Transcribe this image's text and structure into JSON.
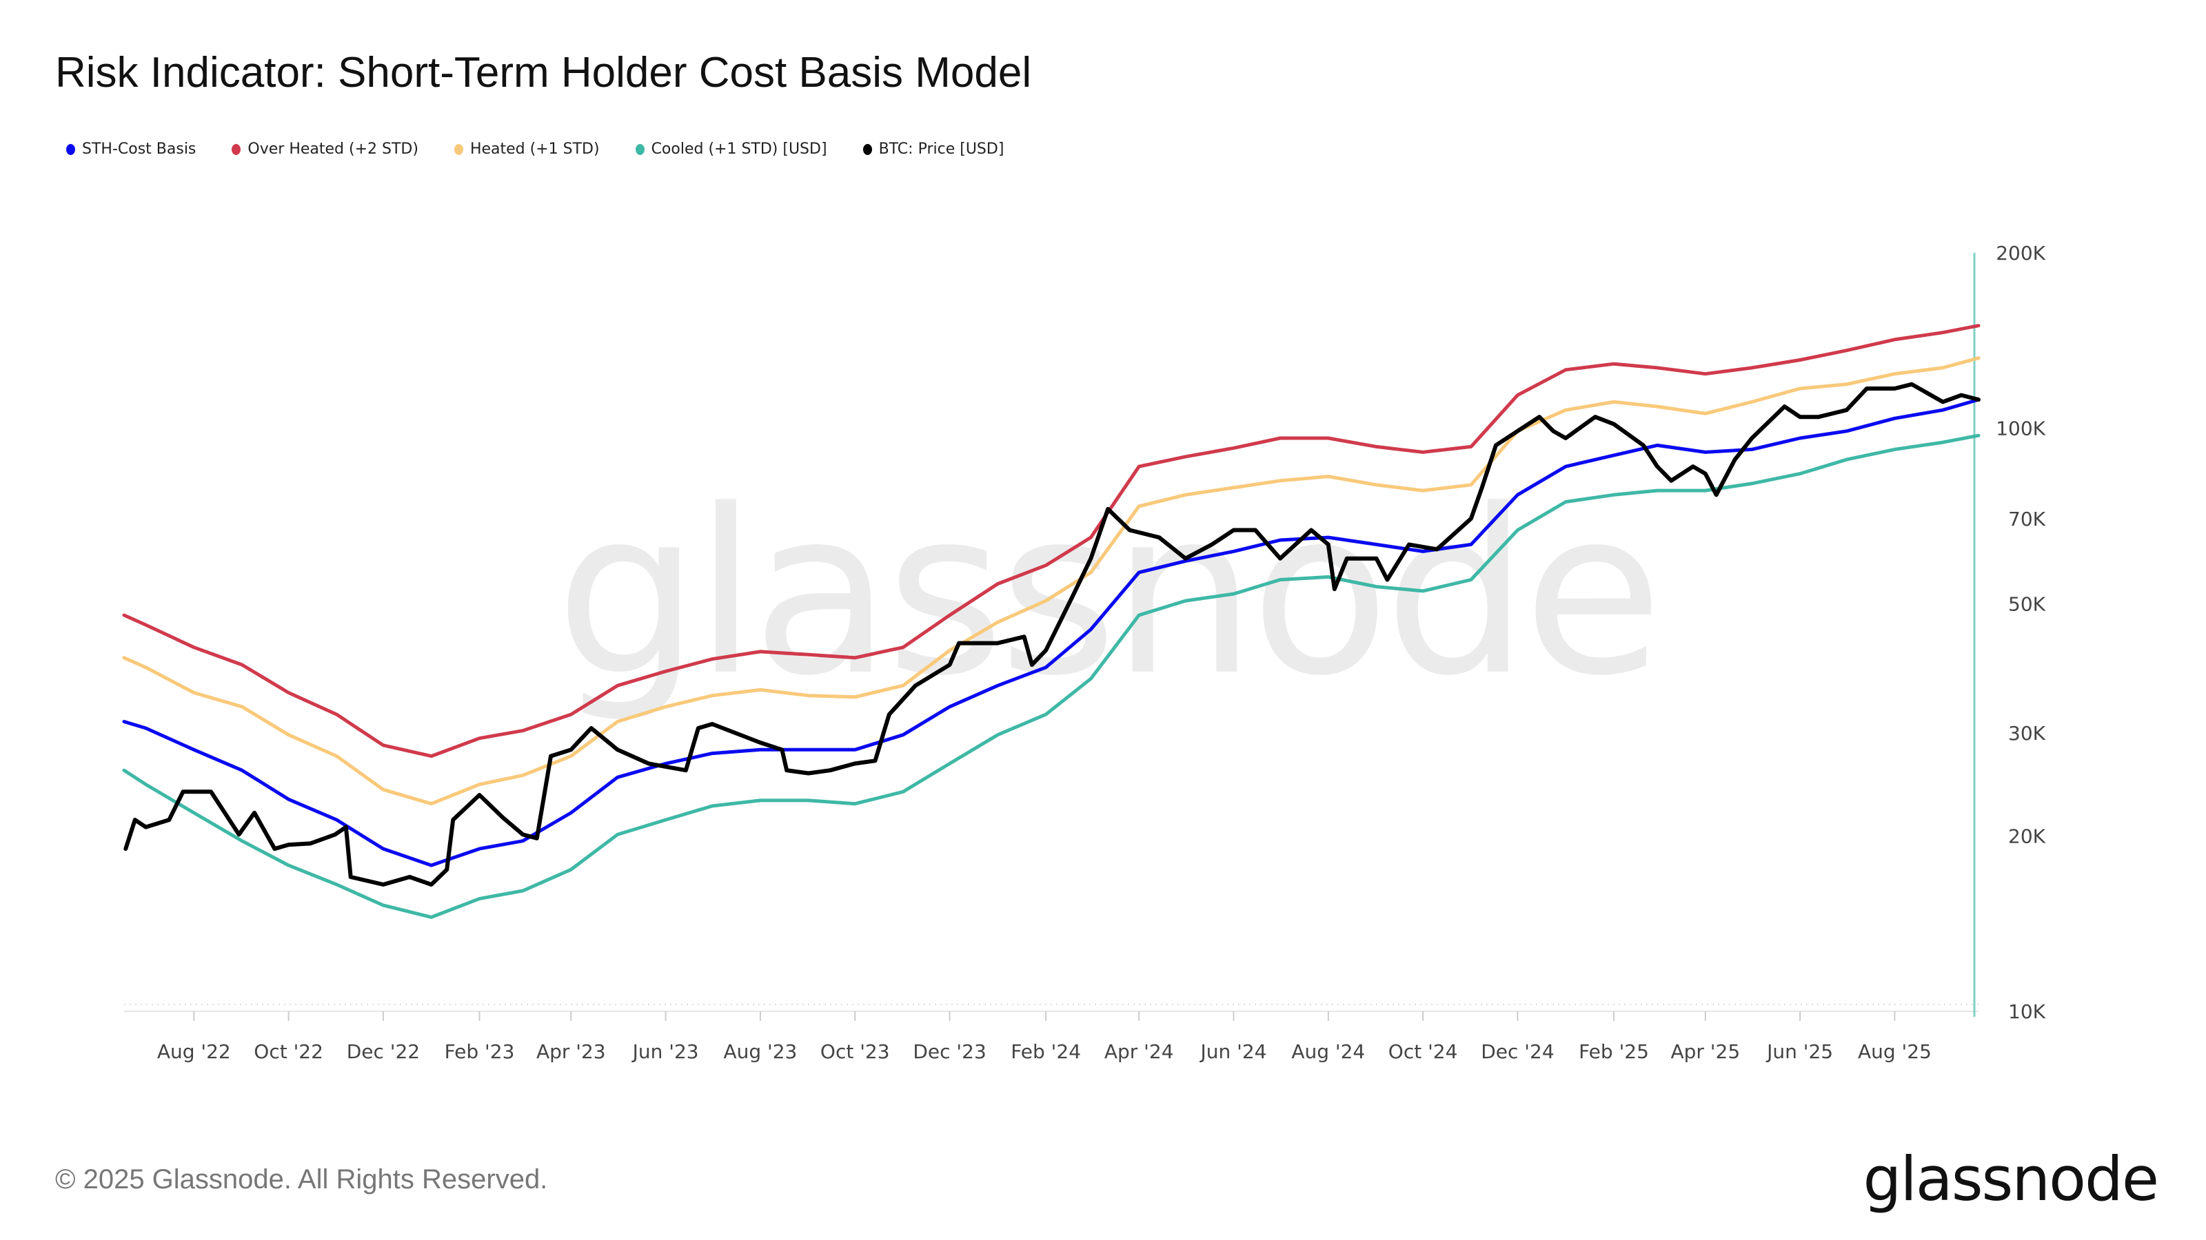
{
  "title": "Risk Indicator: Short-Term Holder Cost Basis Model",
  "footer": "© 2025 Glassnode. All Rights Reserved.",
  "logo": "glassnode",
  "watermark": "glassnode",
  "legend": [
    {
      "label": "STH-Cost Basis",
      "color": "#0a0af0"
    },
    {
      "label": "Over Heated (+2 STD)",
      "color": "#d03a4c"
    },
    {
      "label": "Heated (+1 STD)",
      "color": "#f9c97a"
    },
    {
      "label": "Cooled (+1 STD) [USD]",
      "color": "#3fb8a6"
    },
    {
      "label": "BTC: Price [USD]",
      "color": "#000000"
    }
  ],
  "chart_data": {
    "type": "line",
    "title": "Risk Indicator: Short-Term Holder Cost Basis Model",
    "yscale": "log",
    "ylim": [
      10000,
      200000
    ],
    "xlim": [
      "2022-06-17",
      "2025-09-24"
    ],
    "grid": false,
    "legend_position": "top-left",
    "y_ticks": [
      {
        "value": 200000,
        "label": "200K"
      },
      {
        "value": 100000,
        "label": "100K"
      },
      {
        "value": 70000,
        "label": "70K"
      },
      {
        "value": 50000,
        "label": "50K"
      },
      {
        "value": 30000,
        "label": "30K"
      },
      {
        "value": 20000,
        "label": "20K"
      },
      {
        "value": 10000,
        "label": "10K"
      }
    ],
    "x_ticks": [
      {
        "date": "2022-08-01",
        "label": "Aug '22"
      },
      {
        "date": "2022-10-01",
        "label": "Oct '22"
      },
      {
        "date": "2022-12-01",
        "label": "Dec '22"
      },
      {
        "date": "2023-02-01",
        "label": "Feb '23"
      },
      {
        "date": "2023-04-01",
        "label": "Apr '23"
      },
      {
        "date": "2023-06-01",
        "label": "Jun '23"
      },
      {
        "date": "2023-08-01",
        "label": "Aug '23"
      },
      {
        "date": "2023-10-01",
        "label": "Oct '23"
      },
      {
        "date": "2023-12-01",
        "label": "Dec '23"
      },
      {
        "date": "2024-02-01",
        "label": "Feb '24"
      },
      {
        "date": "2024-04-01",
        "label": "Apr '24"
      },
      {
        "date": "2024-06-01",
        "label": "Jun '24"
      },
      {
        "date": "2024-08-01",
        "label": "Aug '24"
      },
      {
        "date": "2024-10-01",
        "label": "Oct '24"
      },
      {
        "date": "2024-12-01",
        "label": "Dec '24"
      },
      {
        "date": "2025-02-01",
        "label": "Feb '25"
      },
      {
        "date": "2025-04-01",
        "label": "Apr '25"
      },
      {
        "date": "2025-06-01",
        "label": "Jun '25"
      },
      {
        "date": "2025-08-01",
        "label": "Aug '25"
      }
    ],
    "band_dates": [
      "2022-06-17",
      "2022-07-01",
      "2022-08-01",
      "2022-09-01",
      "2022-10-01",
      "2022-11-01",
      "2022-12-01",
      "2023-01-01",
      "2023-02-01",
      "2023-03-01",
      "2023-04-01",
      "2023-05-01",
      "2023-06-01",
      "2023-07-01",
      "2023-08-01",
      "2023-09-01",
      "2023-10-01",
      "2023-11-01",
      "2023-12-01",
      "2024-01-01",
      "2024-02-01",
      "2024-03-01",
      "2024-04-01",
      "2024-05-01",
      "2024-06-01",
      "2024-07-01",
      "2024-08-01",
      "2024-09-01",
      "2024-10-01",
      "2024-11-01",
      "2024-12-01",
      "2025-01-01",
      "2025-02-01",
      "2025-03-01",
      "2025-04-01",
      "2025-05-01",
      "2025-06-01",
      "2025-07-01",
      "2025-08-01",
      "2025-09-01",
      "2025-09-24"
    ],
    "series": [
      {
        "name": "Over Heated (+2 STD)",
        "color": "#d03a4c",
        "values": [
          47800,
          46000,
          42100,
          39300,
          35200,
          32300,
          28600,
          27400,
          29400,
          30300,
          32300,
          36200,
          38300,
          40200,
          41400,
          40900,
          40400,
          42100,
          47800,
          54100,
          58200,
          65000,
          86000,
          89400,
          92500,
          96200,
          96200,
          93000,
          91000,
          93000,
          114000,
          126000,
          129000,
          127000,
          124000,
          127000,
          131000,
          136000,
          142000,
          146000,
          150000
        ]
      },
      {
        "name": "Heated (+1 STD)",
        "color": "#f9c97a",
        "values": [
          40400,
          38900,
          35200,
          33300,
          29800,
          27400,
          24000,
          22700,
          24500,
          25400,
          27400,
          31400,
          33300,
          34800,
          35600,
          34800,
          34600,
          36200,
          41600,
          46500,
          50600,
          56600,
          73500,
          76900,
          79100,
          81300,
          82700,
          80000,
          78200,
          80000,
          98900,
          107500,
          111000,
          109000,
          106000,
          111000,
          117000,
          119000,
          124000,
          127000,
          132000
        ]
      },
      {
        "name": "STH-Cost Basis",
        "color": "#0a0af0",
        "values": [
          31400,
          30600,
          28100,
          25900,
          23100,
          21300,
          19000,
          17800,
          19000,
          19600,
          21900,
          25200,
          26600,
          27700,
          28100,
          28100,
          28100,
          29800,
          33300,
          36200,
          38900,
          45200,
          56600,
          59200,
          61500,
          64300,
          65000,
          63200,
          61500,
          63200,
          76900,
          86000,
          89900,
          93500,
          91000,
          92000,
          96200,
          98900,
          104000,
          107500,
          112000
        ]
      },
      {
        "name": "Cooled (+1 STD) [USD]",
        "color": "#3fb8a6",
        "values": [
          25900,
          24500,
          21900,
          19600,
          17800,
          16500,
          15200,
          14500,
          15600,
          16100,
          17500,
          20100,
          21300,
          22500,
          23000,
          23000,
          22700,
          23800,
          26600,
          29800,
          32300,
          37200,
          47800,
          50600,
          52000,
          55000,
          55600,
          53500,
          52600,
          55000,
          66900,
          74800,
          76900,
          78200,
          78200,
          80400,
          83600,
          88400,
          92000,
          94600,
          97200
        ]
      },
      {
        "name": "BTC: Price [USD]",
        "color": "#000000",
        "dates": [
          "2022-06-18",
          "2022-06-24",
          "2022-07-01",
          "2022-07-16",
          "2022-07-25",
          "2022-08-12",
          "2022-08-30",
          "2022-09-09",
          "2022-09-22",
          "2022-10-01",
          "2022-10-15",
          "2022-10-31",
          "2022-11-07",
          "2022-11-10",
          "2022-12-01",
          "2022-12-18",
          "2023-01-01",
          "2023-01-11",
          "2023-01-15",
          "2023-02-01",
          "2023-02-16",
          "2023-03-01",
          "2023-03-10",
          "2023-03-19",
          "2023-04-01",
          "2023-04-14",
          "2023-05-01",
          "2023-05-21",
          "2023-06-14",
          "2023-06-22",
          "2023-07-01",
          "2023-08-01",
          "2023-08-15",
          "2023-08-18",
          "2023-09-01",
          "2023-09-15",
          "2023-10-01",
          "2023-10-14",
          "2023-10-23",
          "2023-11-09",
          "2023-12-01",
          "2023-12-07",
          "2024-01-01",
          "2024-01-18",
          "2024-01-23",
          "2024-02-01",
          "2024-02-19",
          "2024-03-01",
          "2024-03-12",
          "2024-03-26",
          "2024-04-14",
          "2024-05-01",
          "2024-05-18",
          "2024-06-01",
          "2024-06-15",
          "2024-07-01",
          "2024-07-21",
          "2024-08-01",
          "2024-08-05",
          "2024-08-13",
          "2024-09-01",
          "2024-09-08",
          "2024-09-22",
          "2024-10-10",
          "2024-11-01",
          "2024-11-08",
          "2024-11-17",
          "2024-12-01",
          "2024-12-15",
          "2024-12-24",
          "2025-01-01",
          "2025-01-20",
          "2025-02-01",
          "2025-02-20",
          "2025-03-01",
          "2025-03-10",
          "2025-03-24",
          "2025-04-01",
          "2025-04-08",
          "2025-04-20",
          "2025-05-01",
          "2025-05-22",
          "2025-06-01",
          "2025-06-13",
          "2025-07-01",
          "2025-07-14",
          "2025-08-01",
          "2025-08-12",
          "2025-09-01",
          "2025-09-13",
          "2025-09-24"
        ],
        "values": [
          19000,
          21300,
          20700,
          21300,
          23800,
          23800,
          20100,
          21900,
          19000,
          19300,
          19400,
          20100,
          20700,
          17000,
          16500,
          17000,
          16500,
          17500,
          21300,
          23500,
          21500,
          20100,
          19800,
          27400,
          28100,
          30600,
          28100,
          26600,
          25900,
          30600,
          31100,
          28900,
          28100,
          25900,
          25600,
          25900,
          26600,
          26900,
          32300,
          36200,
          39300,
          42800,
          42800,
          43900,
          39300,
          41600,
          52000,
          59800,
          72700,
          66900,
          65000,
          59800,
          63200,
          66900,
          66900,
          59800,
          66900,
          63200,
          53000,
          59800,
          59800,
          55000,
          63200,
          62000,
          70000,
          79100,
          93500,
          98900,
          104600,
          98900,
          96200,
          104600,
          101700,
          93500,
          86000,
          81300,
          86000,
          83600,
          76900,
          88400,
          96200,
          109000,
          104600,
          104600,
          107500,
          117000,
          117000,
          119000,
          111000,
          114000,
          112000
        ]
      }
    ]
  }
}
